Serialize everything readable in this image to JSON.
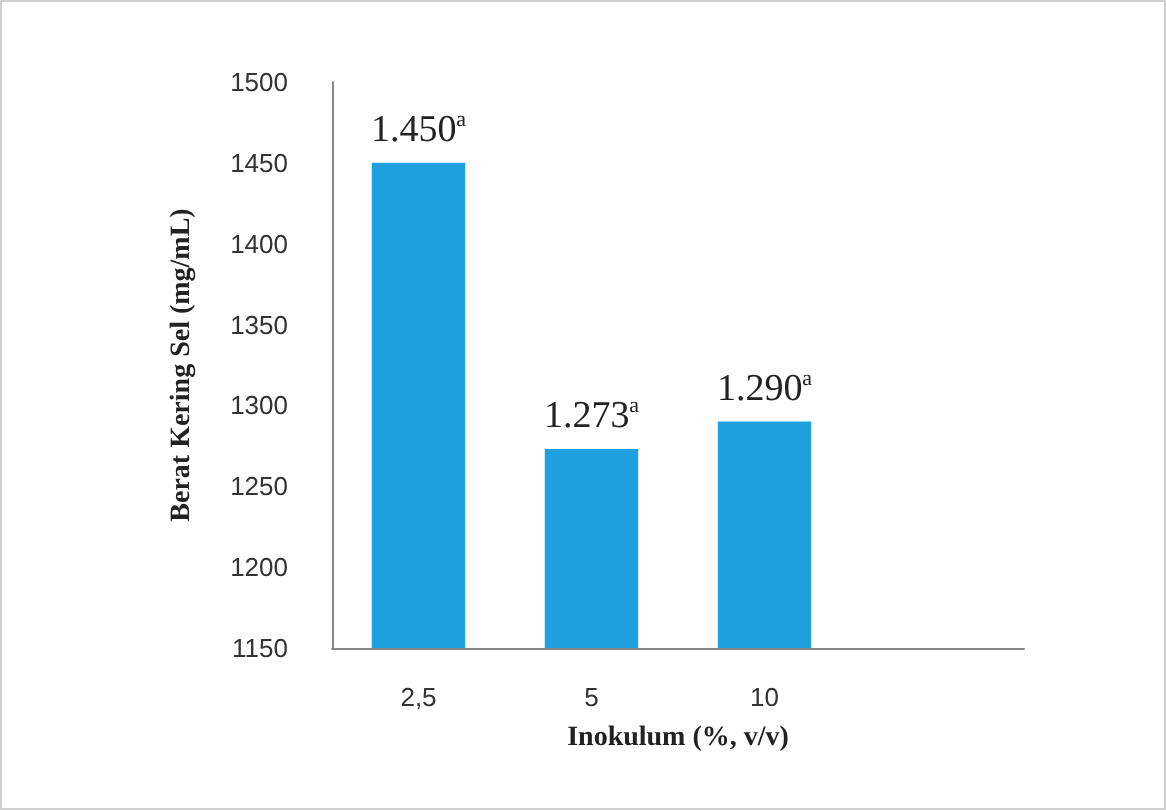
{
  "chart_data": {
    "type": "bar",
    "xlabel": "Inokulum (%, v/v)",
    "ylabel": "Berat Kering Sel (mg/mL)",
    "categories": [
      "2,5",
      "5",
      "10",
      null
    ],
    "values": [
      1450,
      1273,
      1290,
      null
    ],
    "value_labels": [
      "1.450$^{a}$",
      "1.273$^{a}$",
      "1.290$^{a}$",
      null
    ],
    "color": "#1e9fe0",
    "ylim": [
      1150,
      1500
    ],
    "yticks": [
      1150,
      1200,
      1250,
      1300,
      1350,
      1400,
      1450,
      1500
    ],
    "grid": false
  }
}
